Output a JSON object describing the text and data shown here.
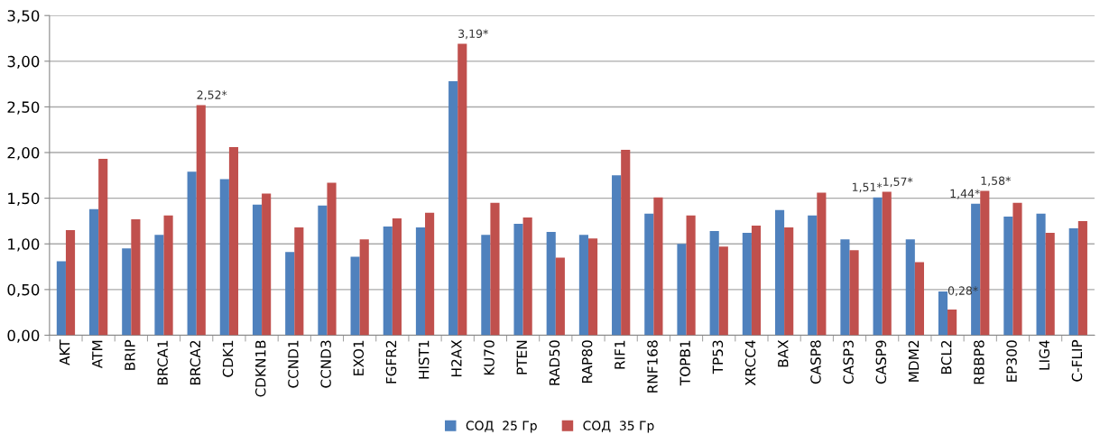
{
  "chart_data": {
    "type": "bar",
    "categories": [
      "AKT",
      "ATM",
      "BRIP",
      "BRCA1",
      "BRCA2",
      "CDK1",
      "CDKN1B",
      "CCND1",
      "CCND3",
      "EXO1",
      "FGFR2",
      "HIST1",
      "H2AX",
      "KU70",
      "PTEN",
      "RAD50",
      "RAP80",
      "RIF1",
      "RNF168",
      "TOPB1",
      "TP53",
      "XRCC4",
      "BAX",
      "CASP8",
      "CASP3",
      "CASP9",
      "MDM2",
      "BCL2",
      "RBBP8",
      "EP300",
      "LIG4",
      "C-FLIP"
    ],
    "series": [
      {
        "name": "СОД  25 Гр",
        "color": "#4f81bd",
        "values": [
          0.81,
          1.38,
          0.95,
          1.1,
          1.79,
          1.71,
          1.43,
          0.91,
          1.42,
          0.86,
          1.19,
          1.18,
          2.78,
          1.1,
          1.22,
          1.13,
          1.1,
          1.75,
          1.33,
          1.0,
          1.14,
          1.12,
          1.37,
          1.31,
          1.05,
          1.51,
          1.05,
          0.48,
          1.44,
          1.3,
          1.33,
          1.17
        ],
        "value_labels": [
          null,
          null,
          null,
          null,
          null,
          null,
          null,
          null,
          null,
          null,
          null,
          null,
          null,
          null,
          null,
          null,
          null,
          null,
          null,
          null,
          null,
          null,
          null,
          null,
          null,
          "1,51*",
          null,
          null,
          "1,44*",
          null,
          null,
          null
        ]
      },
      {
        "name": "СОД  35 Гр",
        "color": "#c0504d",
        "values": [
          1.15,
          1.93,
          1.27,
          1.31,
          2.52,
          2.06,
          1.55,
          1.18,
          1.67,
          1.05,
          1.28,
          1.34,
          3.19,
          1.45,
          1.29,
          0.85,
          1.06,
          2.03,
          1.51,
          1.31,
          0.97,
          1.2,
          1.18,
          1.56,
          0.93,
          1.57,
          0.8,
          0.28,
          1.58,
          1.45,
          1.12,
          1.25
        ],
        "value_labels": [
          null,
          null,
          null,
          null,
          "2,52*",
          null,
          null,
          null,
          null,
          null,
          null,
          null,
          "3,19*",
          null,
          null,
          null,
          null,
          null,
          null,
          null,
          null,
          null,
          null,
          null,
          null,
          "1,57*",
          null,
          "0,28*",
          "1,58*",
          null,
          null,
          null
        ]
      }
    ],
    "ylim": [
      0,
      3.5
    ],
    "yticks": [
      {
        "value": 0,
        "label": "0,00"
      },
      {
        "value": 0.5,
        "label": "0,50"
      },
      {
        "value": 1,
        "label": "1,00"
      },
      {
        "value": 1.5,
        "label": "1,50"
      },
      {
        "value": 2,
        "label": "2,00"
      },
      {
        "value": 2.5,
        "label": "2,50"
      },
      {
        "value": 3,
        "label": "3,00"
      },
      {
        "value": 3.5,
        "label": "3,50"
      }
    ],
    "grid": "y",
    "legend": "bottom"
  }
}
